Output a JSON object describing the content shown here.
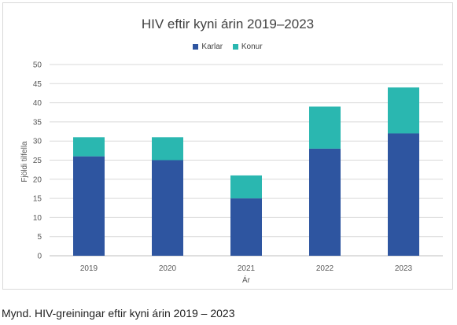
{
  "chart_data": {
    "type": "bar",
    "stacked": true,
    "title": "HIV eftir kyni árin 2019–2023",
    "xlabel": "Ár",
    "ylabel": "Fjöldi tilfella",
    "categories": [
      "2019",
      "2020",
      "2021",
      "2022",
      "2023"
    ],
    "series": [
      {
        "name": "Karlar",
        "values": [
          26,
          25,
          15,
          28,
          32
        ],
        "color": "#2e55a0"
      },
      {
        "name": "Konur",
        "values": [
          5,
          6,
          6,
          11,
          12
        ],
        "color": "#2ab7b0"
      }
    ],
    "ylim": [
      0,
      50
    ],
    "yticks": [
      0,
      5,
      10,
      15,
      20,
      25,
      30,
      35,
      40,
      45,
      50
    ],
    "grid": true,
    "legend_position": "top"
  },
  "caption": "Mynd. HIV-greiningar eftir kyni árin 2019 – 2023"
}
